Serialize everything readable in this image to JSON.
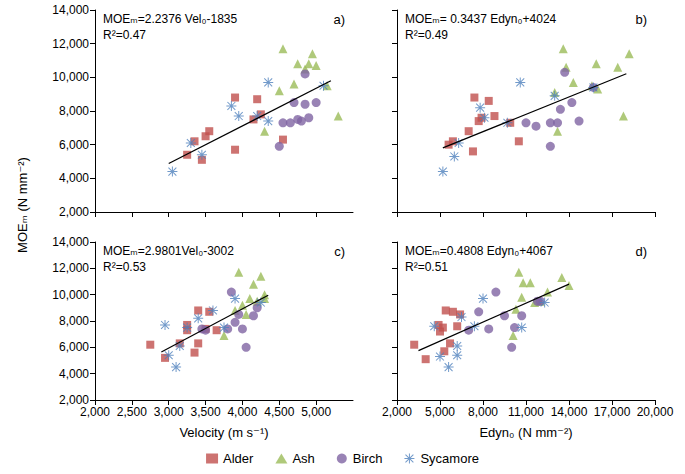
{
  "ylabel": "MOEₘ (N mm⁻²)",
  "legend": "bottom",
  "chart_data": [
    {
      "type": "scatter",
      "panel_label": "a)",
      "annotation": [
        "MOEₘ=2.2376 Vel₀-1835",
        "R²=0.47"
      ],
      "xlim": [
        2000,
        5500
      ],
      "xticks": [
        2000,
        2500,
        3000,
        3500,
        4000,
        4500,
        5000
      ],
      "ylim": [
        2000,
        14000
      ],
      "yticks": [
        2000,
        4000,
        6000,
        8000,
        10000,
        12000,
        14000
      ],
      "grid": false,
      "tick_labels": "y",
      "trendline": {
        "x": [
          3000,
          5200
        ],
        "values": [
          4878,
          9800
        ]
      },
      "series": [
        {
          "name": "Alder",
          "color": "#c0504d",
          "marker": "square",
          "x": [
            3250,
            3350,
            3450,
            3500,
            3550,
            3900,
            3900,
            4150,
            4200,
            4250,
            4550
          ],
          "values": [
            5400,
            6200,
            5100,
            6500,
            6800,
            5700,
            8800,
            7500,
            8700,
            7800,
            6300
          ]
        },
        {
          "name": "Ash",
          "color": "#9bbb59",
          "marker": "triangle",
          "x": [
            4300,
            4500,
            4550,
            4700,
            4750,
            4850,
            4950,
            5000,
            5150,
            5300,
            4900
          ],
          "values": [
            6800,
            9200,
            11700,
            9600,
            10800,
            10500,
            11400,
            10700,
            9500,
            7700,
            10800
          ]
        },
        {
          "name": "Birch",
          "color": "#8064a2",
          "marker": "circle",
          "x": [
            4500,
            4550,
            4650,
            4800,
            4850,
            4850,
            4900,
            5000,
            4700,
            4750
          ],
          "values": [
            5900,
            7300,
            7300,
            7400,
            10200,
            8400,
            7600,
            8500,
            8500,
            7500
          ]
        },
        {
          "name": "Sycamore",
          "color": "#4f81bd",
          "marker": "asterisk",
          "x": [
            3050,
            3300,
            3450,
            3850,
            3950,
            4350,
            4350,
            4200,
            5100
          ],
          "values": [
            4400,
            6100,
            5400,
            8300,
            7700,
            9700,
            7400,
            7700,
            9500
          ]
        }
      ]
    },
    {
      "type": "scatter",
      "panel_label": "b)",
      "annotation": [
        "MOEₘ= 0.3437 Edyn₀+4024",
        "R²=0.49"
      ],
      "xlim": [
        2000,
        20000
      ],
      "xticks": [
        2000,
        5000,
        8000,
        11000,
        14000,
        17000,
        20000
      ],
      "ylim": [
        2000,
        14000
      ],
      "yticks": [
        2000,
        4000,
        6000,
        8000,
        10000,
        12000,
        14000
      ],
      "grid": false,
      "tick_labels": false,
      "trendline": {
        "x": [
          5200,
          18000
        ],
        "values": [
          5811,
          10211
        ]
      },
      "series": [
        {
          "name": "Alder",
          "color": "#c0504d",
          "marker": "square",
          "x": [
            5600,
            5900,
            7000,
            7300,
            7400,
            7700,
            8400,
            8800,
            9900,
            10500,
            7900
          ],
          "values": [
            6000,
            6200,
            6800,
            5600,
            8800,
            7400,
            8600,
            7700,
            7300,
            6200,
            7600
          ]
        },
        {
          "name": "Ash",
          "color": "#9bbb59",
          "marker": "triangle",
          "x": [
            13000,
            13200,
            13600,
            13800,
            14300,
            15600,
            15900,
            17400,
            17800,
            18200,
            16000
          ],
          "values": [
            9100,
            6800,
            11700,
            10600,
            9700,
            9500,
            10800,
            10600,
            7700,
            11400,
            9300
          ]
        },
        {
          "name": "Birch",
          "color": "#8064a2",
          "marker": "circle",
          "x": [
            11000,
            11700,
            12700,
            12700,
            13200,
            13400,
            13700,
            14200,
            14700,
            15700
          ],
          "values": [
            7300,
            7100,
            5900,
            7300,
            7300,
            8100,
            10300,
            8500,
            7400,
            9400
          ]
        },
        {
          "name": "Sycamore",
          "color": "#4f81bd",
          "marker": "asterisk",
          "x": [
            5200,
            6000,
            6300,
            7800,
            8100,
            9700,
            10600,
            13000,
            15700
          ],
          "values": [
            4400,
            5300,
            6100,
            8200,
            7600,
            7300,
            9700,
            8900,
            9400
          ]
        }
      ]
    },
    {
      "type": "scatter",
      "panel_label": "c)",
      "annotation": [
        "MOEₘ=2.9801Vel₀-3002",
        "R²=0.53"
      ],
      "xlabel": "Velocity (m s⁻¹)",
      "xlim": [
        2000,
        5500
      ],
      "xticks": [
        2000,
        2500,
        3000,
        3500,
        4000,
        4500,
        5000
      ],
      "ylim": [
        2000,
        14000
      ],
      "yticks": [
        2000,
        4000,
        6000,
        8000,
        10000,
        12000,
        14000
      ],
      "grid": false,
      "trendline": {
        "x": [
          2900,
          4350
        ],
        "values": [
          5640,
          9962
        ]
      },
      "series": [
        {
          "name": "Alder",
          "color": "#c0504d",
          "marker": "square",
          "x": [
            2750,
            2950,
            3150,
            3250,
            3250,
            3350,
            3400,
            3400,
            3500,
            3550,
            3650
          ],
          "values": [
            6200,
            5200,
            6300,
            7700,
            7300,
            5600,
            8800,
            6300,
            7400,
            8700,
            7300
          ]
        },
        {
          "name": "Ash",
          "color": "#9bbb59",
          "marker": "triangle",
          "x": [
            3750,
            3900,
            3950,
            4000,
            4100,
            4150,
            4200,
            4250,
            4300,
            4300,
            4050
          ],
          "values": [
            6900,
            8800,
            11700,
            9200,
            9700,
            10800,
            9500,
            11400,
            10000,
            9700,
            8500
          ]
        },
        {
          "name": "Birch",
          "color": "#8064a2",
          "marker": "circle",
          "x": [
            3450,
            3500,
            3800,
            3850,
            3900,
            3950,
            4000,
            4050,
            4150,
            4200
          ],
          "values": [
            7400,
            7300,
            7400,
            10200,
            7900,
            8500,
            7400,
            6000,
            8400,
            9000
          ]
        },
        {
          "name": "Sycamore",
          "color": "#4f81bd",
          "marker": "asterisk",
          "x": [
            2950,
            3000,
            3100,
            3150,
            3250,
            3400,
            3600,
            3750,
            3900,
            4250
          ],
          "values": [
            7700,
            5400,
            4500,
            6100,
            7500,
            8200,
            8800,
            7500,
            9700,
            9400
          ]
        }
      ]
    },
    {
      "type": "scatter",
      "panel_label": "d)",
      "annotation": [
        "MOEₘ=0.4808 Edyn₀+4067",
        "R²=0.51"
      ],
      "xlabel": "Edyn₀ (N mm⁻²)",
      "xlim": [
        2000,
        20000
      ],
      "xticks": [
        2000,
        5000,
        8000,
        11000,
        14000,
        17000,
        20000
      ],
      "ylim": [
        2000,
        14000
      ],
      "yticks": [
        2000,
        4000,
        6000,
        8000,
        10000,
        12000,
        14000
      ],
      "grid": false,
      "tick_labels": "x",
      "trendline": {
        "x": [
          3500,
          14000
        ],
        "values": [
          5750,
          10800
        ]
      },
      "series": [
        {
          "name": "Alder",
          "color": "#c0504d",
          "marker": "square",
          "x": [
            3200,
            4000,
            5000,
            5200,
            5400,
            5700,
            5900,
            5300,
            6200,
            6400,
            4900
          ],
          "values": [
            6200,
            5100,
            7200,
            7500,
            8800,
            6300,
            8700,
            5700,
            7600,
            8500,
            7700
          ]
        },
        {
          "name": "Ash",
          "color": "#9bbb59",
          "marker": "triangle",
          "x": [
            10100,
            10300,
            10500,
            10700,
            11300,
            11600,
            12500,
            13500,
            14000,
            12000,
            10800
          ],
          "values": [
            6900,
            8900,
            11700,
            9800,
            10900,
            9400,
            10200,
            11300,
            10700,
            9500,
            10900
          ]
        },
        {
          "name": "Birch",
          "color": "#8064a2",
          "marker": "circle",
          "x": [
            7000,
            7700,
            8900,
            9500,
            10000,
            10200,
            10700,
            11800,
            12000,
            8400
          ],
          "values": [
            7300,
            8700,
            10200,
            8400,
            6000,
            7500,
            8400,
            9500,
            9500,
            7400
          ]
        },
        {
          "name": "Sycamore",
          "color": "#4f81bd",
          "marker": "asterisk",
          "x": [
            4600,
            5000,
            5600,
            6200,
            6500,
            7400,
            8000,
            10700,
            12300,
            6200
          ],
          "values": [
            7600,
            5300,
            4500,
            6100,
            8300,
            7600,
            9700,
            7500,
            9400,
            5400
          ]
        }
      ]
    }
  ]
}
